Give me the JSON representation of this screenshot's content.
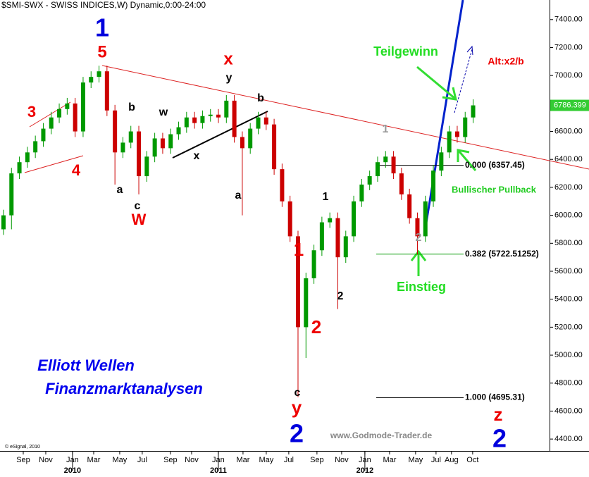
{
  "chart_data": {
    "type": "candlestick",
    "title": "$SMI-SWX - SWISS INDICES,W) Dynamic,0:00-24:00",
    "up_color": "#009900",
    "down_color": "#cc0000",
    "open": [
      5900,
      6000,
      6300,
      6380,
      6450,
      6530,
      6620,
      6700,
      6760,
      6800,
      6600,
      6950,
      6990,
      7030,
      6750,
      6450,
      6520,
      6600,
      6280,
      6420,
      6550,
      6480,
      6580,
      6630,
      6700,
      6660,
      6710,
      6720,
      6700,
      6820,
      6560,
      6480,
      6620,
      6700,
      6650,
      6330,
      6100,
      5850,
      5200,
      5550,
      5750,
      5950,
      5980,
      5700,
      5850,
      6100,
      6220,
      6280,
      6380,
      6420,
      6300,
      6150,
      5980,
      5850,
      6100,
      6320,
      6450,
      6600,
      6560,
      6700
    ],
    "high": [
      6040,
      6340,
      6420,
      6490,
      6570,
      6660,
      6740,
      6800,
      6840,
      6840,
      6990,
      7030,
      7070,
      7070,
      6790,
      6560,
      6640,
      6640,
      6460,
      6590,
      6590,
      6620,
      6670,
      6740,
      6740,
      6750,
      6760,
      6760,
      6860,
      6860,
      6600,
      6660,
      6740,
      6740,
      6690,
      6370,
      6140,
      5890,
      5590,
      5790,
      5990,
      6020,
      6020,
      5890,
      6140,
      6260,
      6320,
      6420,
      6460,
      6460,
      6340,
      6190,
      6020,
      6140,
      6360,
      6490,
      6640,
      6640,
      6740,
      6830
    ],
    "low": [
      5860,
      5900,
      6260,
      6340,
      6410,
      6490,
      6580,
      6660,
      6720,
      6560,
      6560,
      6910,
      6950,
      6710,
      6220,
      6410,
      6480,
      6150,
      6240,
      6380,
      6440,
      6440,
      6540,
      6590,
      6620,
      6620,
      6670,
      6660,
      6660,
      6520,
      6000,
      6440,
      6580,
      6610,
      6290,
      6060,
      5810,
      4700,
      4980,
      5510,
      5710,
      5910,
      5330,
      5660,
      5810,
      6060,
      6180,
      6240,
      6340,
      6260,
      6110,
      5940,
      5720,
      5810,
      6060,
      6280,
      6410,
      6520,
      6520,
      6660
    ],
    "close": [
      6000,
      6300,
      6380,
      6450,
      6530,
      6620,
      6700,
      6760,
      6800,
      6600,
      6950,
      6990,
      7030,
      6750,
      6450,
      6520,
      6600,
      6280,
      6420,
      6550,
      6480,
      6580,
      6630,
      6700,
      6660,
      6710,
      6720,
      6700,
      6820,
      6560,
      6480,
      6620,
      6700,
      6650,
      6330,
      6100,
      5850,
      5200,
      5550,
      5750,
      5950,
      5980,
      5700,
      5850,
      6100,
      6220,
      6280,
      6380,
      6420,
      6300,
      6150,
      5980,
      5850,
      6100,
      6320,
      6450,
      6600,
      6560,
      6700,
      6786.399
    ],
    "last_price_label": "6786.399",
    "xlim": [
      -0.44,
      68.6
    ],
    "xticks": [
      {
        "value": 2.48,
        "label": "Sep"
      },
      {
        "value": 5.31,
        "label": "Nov"
      },
      {
        "value": 8.67,
        "label": "Jan"
      },
      {
        "value": 11.33,
        "label": "Mar"
      },
      {
        "value": 14.6,
        "label": "May"
      },
      {
        "value": 17.43,
        "label": "Jul"
      },
      {
        "value": 20.97,
        "label": "Sep"
      },
      {
        "value": 23.63,
        "label": "Nov"
      },
      {
        "value": 26.99,
        "label": "Jan"
      },
      {
        "value": 30.09,
        "label": "Mar"
      },
      {
        "value": 33.01,
        "label": "May"
      },
      {
        "value": 35.84,
        "label": "Jul"
      },
      {
        "value": 39.38,
        "label": "Sep"
      },
      {
        "value": 42.48,
        "label": "Nov"
      },
      {
        "value": 45.4,
        "label": "Jan"
      },
      {
        "value": 48.5,
        "label": "Mar"
      },
      {
        "value": 51.77,
        "label": "May"
      },
      {
        "value": 54.34,
        "label": "Jul"
      },
      {
        "value": 56.28,
        "label": "Aug"
      },
      {
        "value": 58.94,
        "label": "Oct"
      }
    ],
    "year_ticks": [
      {
        "value": 8.67,
        "label": "2010"
      },
      {
        "value": 26.99,
        "label": "2011"
      },
      {
        "value": 45.4,
        "label": "2012"
      }
    ],
    "ylim": [
      4315,
      7540
    ],
    "yticks": [
      {
        "value": 4400,
        "label": "4400.00"
      },
      {
        "value": 4600,
        "label": "4600.00"
      },
      {
        "value": 4800,
        "label": "4800.00"
      },
      {
        "value": 5000,
        "label": "5000.00"
      },
      {
        "value": 5200,
        "label": "5200.00"
      },
      {
        "value": 5400,
        "label": "5400.00"
      },
      {
        "value": 5600,
        "label": "5600.00"
      },
      {
        "value": 5800,
        "label": "5800.00"
      },
      {
        "value": 6000,
        "label": "6000.00"
      },
      {
        "value": 6200,
        "label": "6200.00"
      },
      {
        "value": 6400,
        "label": "6400.00"
      },
      {
        "value": 6600,
        "label": "6600.00"
      },
      {
        "value": 6800,
        "label": "6800.00"
      },
      {
        "value": 7000,
        "label": "7000.00"
      },
      {
        "value": 7200,
        "label": "7200.00"
      },
      {
        "value": 7400,
        "label": "7400.00"
      }
    ],
    "fib_levels": [
      {
        "value": 6357.45,
        "label": "0.000 (6357.45)"
      },
      {
        "value": 5722.51252,
        "label": "0.382 (5722.51252)"
      },
      {
        "value": 4695.31,
        "label": "1.000 (4695.31)"
      }
    ],
    "annotations": [
      {
        "text": "1",
        "color": "#0000dd"
      },
      {
        "text": "5",
        "color": "#ee0000"
      },
      {
        "text": "3",
        "color": "#ee0000"
      },
      {
        "text": "4",
        "color": "#ee0000"
      },
      {
        "text": "b",
        "color": "#000000"
      },
      {
        "text": "a",
        "color": "#000000"
      },
      {
        "text": "c",
        "color": "#000000"
      },
      {
        "text": "W",
        "color": "#ee0000"
      },
      {
        "text": "w",
        "color": "#000000"
      },
      {
        "text": "x",
        "color": "#000000"
      },
      {
        "text": "x",
        "color": "#ee0000"
      },
      {
        "text": "y",
        "color": "#000000"
      },
      {
        "text": "b",
        "color": "#000000"
      },
      {
        "text": "a",
        "color": "#000000"
      },
      {
        "text": "1",
        "color": "#ee0000"
      },
      {
        "text": "2",
        "color": "#ee0000"
      },
      {
        "text": "1",
        "color": "#000000"
      },
      {
        "text": "2",
        "color": "#000000"
      },
      {
        "text": "c",
        "color": "#000000"
      },
      {
        "text": "y",
        "color": "#ee0000"
      },
      {
        "text": "2",
        "color": "#0000dd"
      },
      {
        "text": "1",
        "color": "#999999"
      },
      {
        "text": "2",
        "color": "#999999"
      },
      {
        "text": "z",
        "color": "#ee0000"
      },
      {
        "text": "2",
        "color": "#0000dd"
      },
      {
        "text": "Teilgewinn",
        "color": "#22dd22"
      },
      {
        "text": "Alt:x2/b",
        "color": "#ee0000"
      },
      {
        "text": "Bullischer Pullback",
        "color": "#22cc22"
      },
      {
        "text": "Einstieg",
        "color": "#22dd22"
      },
      {
        "text": "Elliott Wellen",
        "color": "#0000ee"
      },
      {
        "text": "Finanzmarktanalysen",
        "color": "#0000ee"
      },
      {
        "text": "www.Godmode-Trader.de",
        "color": "#888888"
      },
      {
        "text": "© eSignal, 2010",
        "color": "#000000"
      }
    ]
  }
}
